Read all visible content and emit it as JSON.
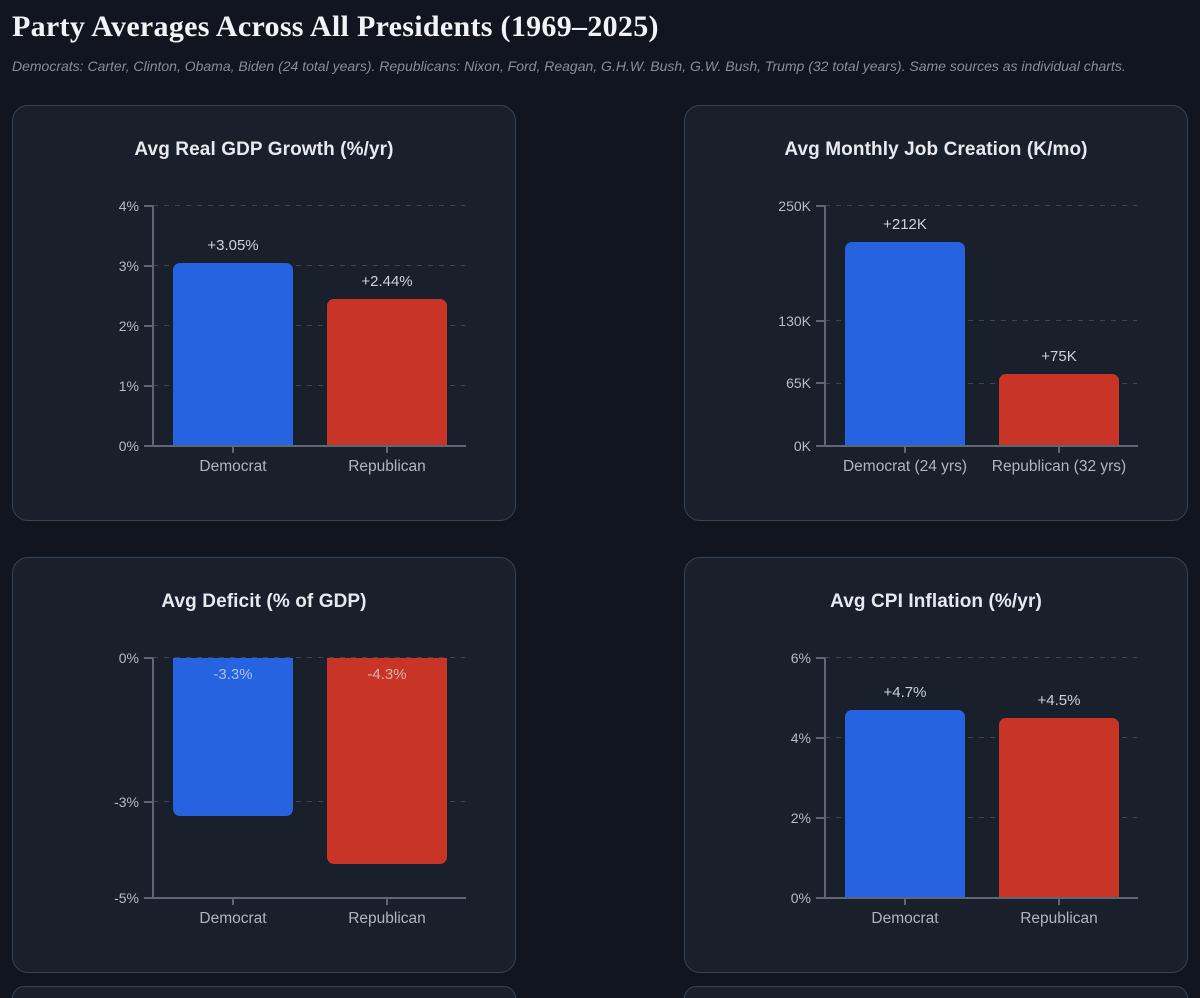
{
  "page": {
    "title": "Party Averages Across All Presidents (1969–2025)",
    "subtitle": "Democrats: Carter, Clinton, Obama, Biden (24 total years). Republicans: Nixon, Ford, Reagan, G.H.W. Bush, G.W. Bush, Trump (32 total years). Same sources as individual charts."
  },
  "colors": {
    "page_background": "#10151f",
    "card_background": "#1a202b",
    "card_border": "#39404f",
    "democrat_blue": "#2563e0",
    "republican_red": "#c83527",
    "axis": "#5f6675",
    "gridline": "#3d4453",
    "tick_text": "#b6bcc6"
  },
  "chart_data": [
    {
      "id": "gdp-growth",
      "type": "bar",
      "title": "Avg Real GDP Growth (%/yr)",
      "categories": [
        "Democrat",
        "Republican"
      ],
      "series_keys": [
        "democrat",
        "republican"
      ],
      "values": [
        3.05,
        2.44
      ],
      "value_labels": [
        "+3.05%",
        "+2.44%"
      ],
      "bar_colors": [
        "#2563e0",
        "#c83527"
      ],
      "ylim": [
        0,
        4
      ],
      "yticks": [
        {
          "value": 0,
          "label": "0%"
        },
        {
          "value": 1,
          "label": "1%"
        },
        {
          "value": 2,
          "label": "2%"
        },
        {
          "value": 3,
          "label": "3%"
        },
        {
          "value": 4,
          "label": "4%"
        }
      ],
      "grid": "dashed",
      "legend": "none",
      "label_position": "above"
    },
    {
      "id": "job-creation",
      "type": "bar",
      "title": "Avg Monthly Job Creation (K/mo)",
      "categories": [
        "Democrat (24 yrs)",
        "Republican (32 yrs)"
      ],
      "series_keys": [
        "democrat",
        "republican"
      ],
      "values": [
        212,
        75
      ],
      "value_labels": [
        "+212K",
        "+75K"
      ],
      "bar_colors": [
        "#2563e0",
        "#c83527"
      ],
      "ylim": [
        0,
        250
      ],
      "yticks": [
        {
          "value": 0,
          "label": "0K"
        },
        {
          "value": 65,
          "label": "65K"
        },
        {
          "value": 130,
          "label": "130K"
        },
        {
          "value": 250,
          "label": "250K"
        }
      ],
      "grid": "dashed",
      "legend": "none",
      "label_position": "above"
    },
    {
      "id": "deficit",
      "type": "bar",
      "title": "Avg Deficit (% of GDP)",
      "categories": [
        "Democrat",
        "Republican"
      ],
      "series_keys": [
        "democrat",
        "republican"
      ],
      "values": [
        -3.3,
        -4.3
      ],
      "value_labels": [
        "-3.3%",
        "-4.3%"
      ],
      "bar_colors": [
        "#2563e0",
        "#c83527"
      ],
      "ylim": [
        -5,
        0
      ],
      "yticks": [
        {
          "value": 0,
          "label": "0%"
        },
        {
          "value": -3,
          "label": "-3%"
        },
        {
          "value": -5,
          "label": "-5%"
        }
      ],
      "grid": "dashed",
      "legend": "none",
      "label_position": "inside"
    },
    {
      "id": "cpi-inflation",
      "type": "bar",
      "title": "Avg CPI Inflation (%/yr)",
      "categories": [
        "Democrat",
        "Republican"
      ],
      "series_keys": [
        "democrat",
        "republican"
      ],
      "values": [
        4.7,
        4.5
      ],
      "value_labels": [
        "+4.7%",
        "+4.5%"
      ],
      "bar_colors": [
        "#2563e0",
        "#c83527"
      ],
      "ylim": [
        0,
        6
      ],
      "yticks": [
        {
          "value": 0,
          "label": "0%"
        },
        {
          "value": 2,
          "label": "2%"
        },
        {
          "value": 4,
          "label": "4%"
        },
        {
          "value": 6,
          "label": "6%"
        }
      ],
      "grid": "dashed",
      "legend": "none",
      "label_position": "above"
    }
  ]
}
